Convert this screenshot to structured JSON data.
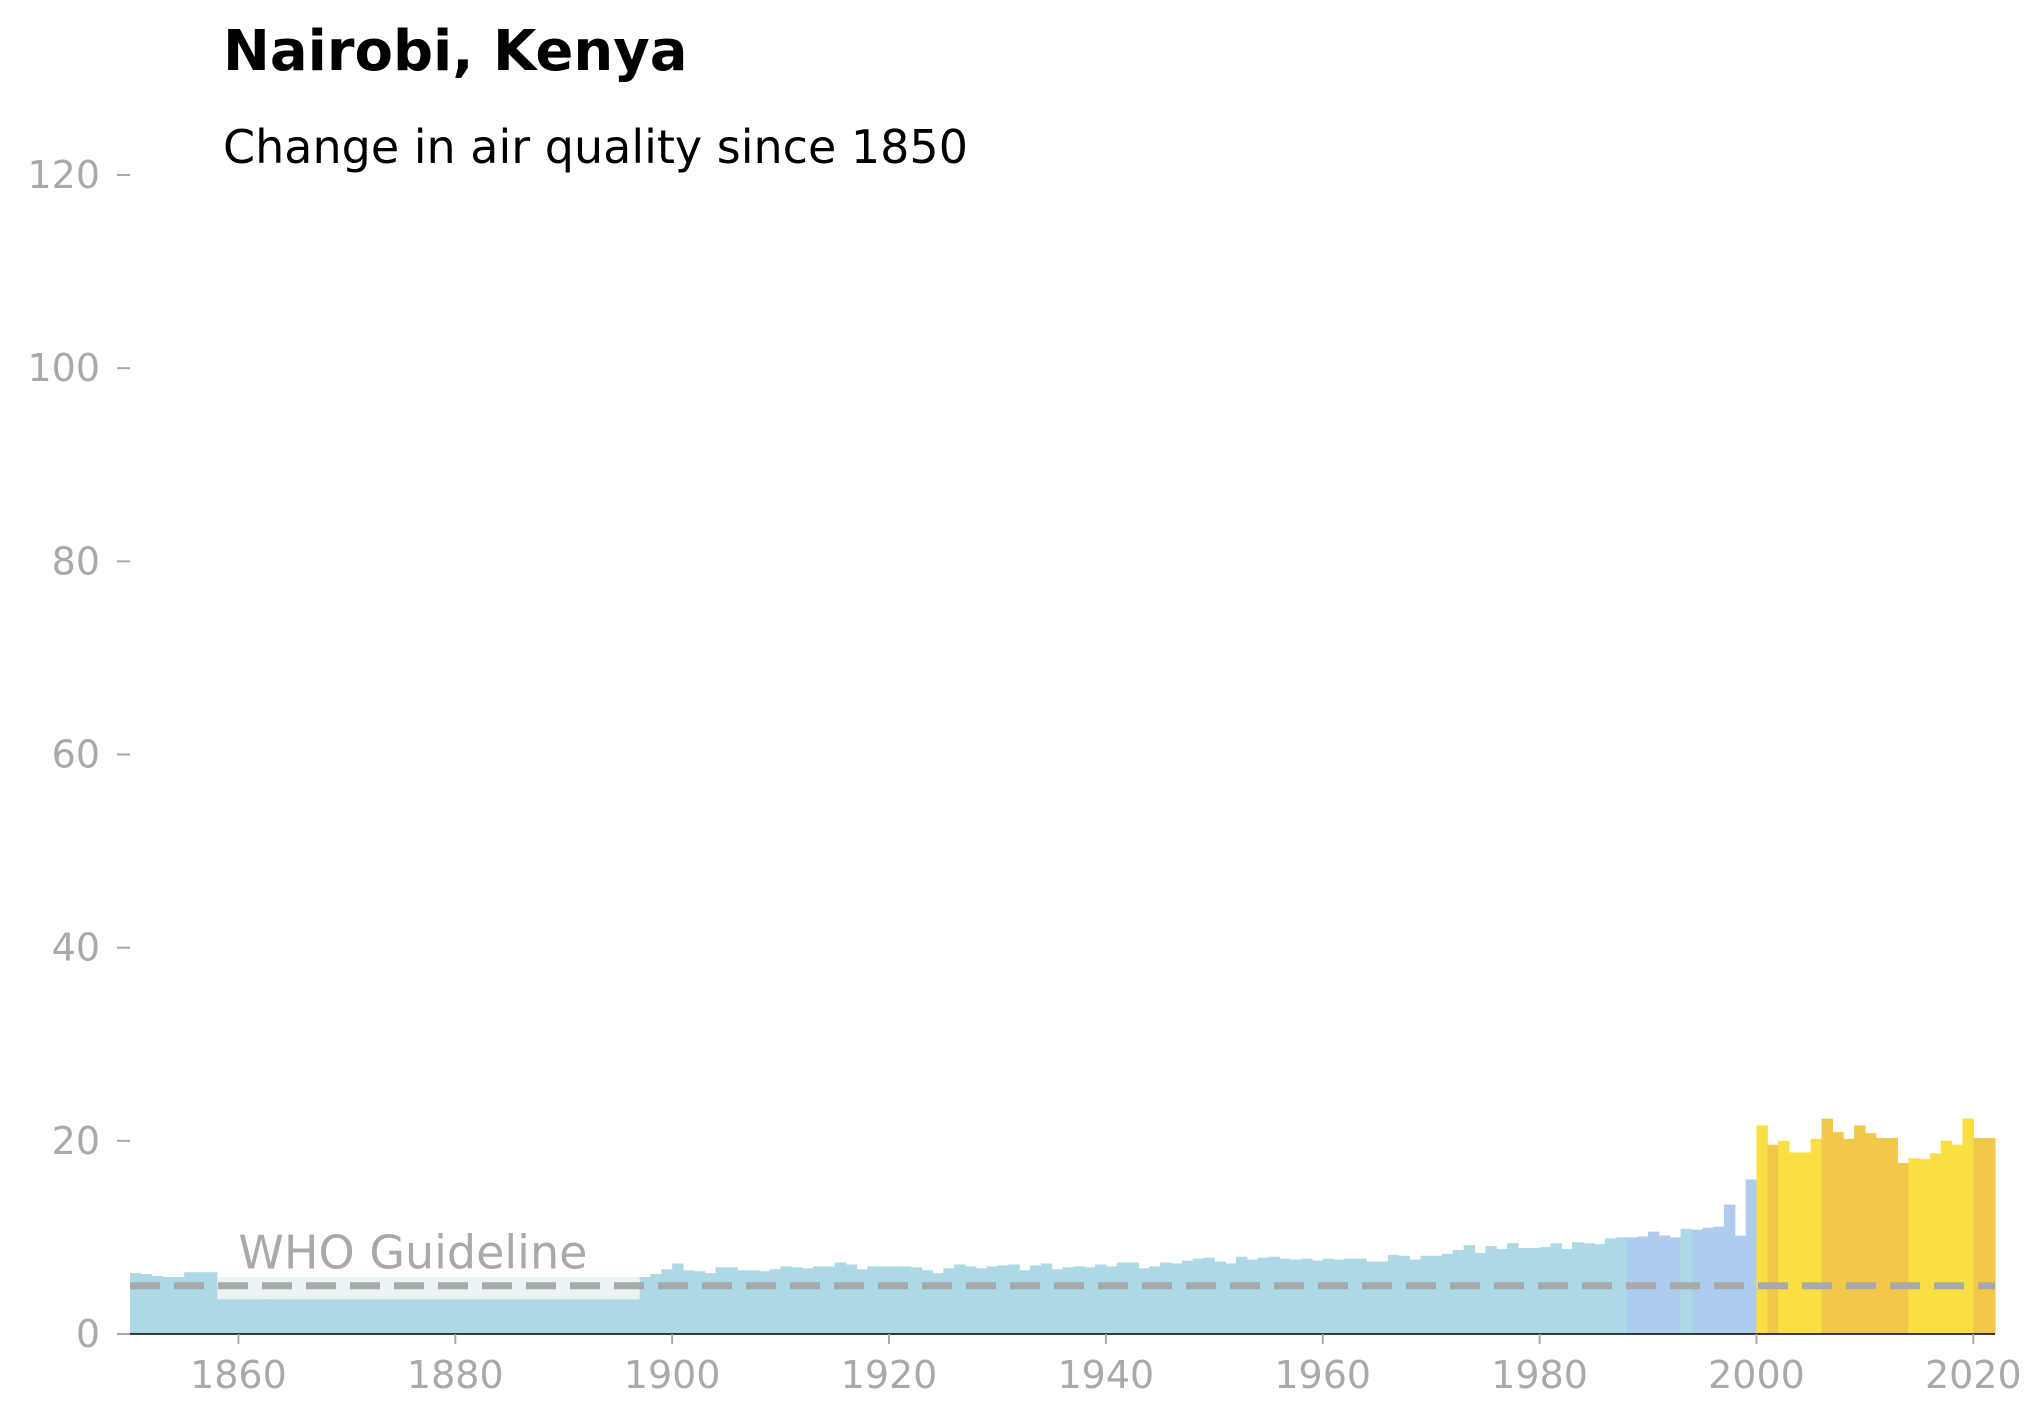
{
  "chart_data": {
    "type": "bar",
    "title": "Nairobi, Kenya",
    "subtitle": "Change in air quality since 1850",
    "xlabel": "",
    "ylabel": "",
    "xlim": [
      1850,
      2022
    ],
    "ylim": [
      0,
      120
    ],
    "x_ticks": [
      1860,
      1880,
      1900,
      1920,
      1940,
      1960,
      1980,
      2000,
      2020
    ],
    "y_ticks": [
      0,
      20,
      40,
      60,
      80,
      100,
      120
    ],
    "grid": false,
    "legend": "none",
    "guideline": {
      "label": "WHO Guideline",
      "value": 5,
      "color": "#a9a9a9"
    },
    "colors": {
      "low": "#add8e6",
      "moderate": "#aecdee",
      "high": "#f9df44",
      "higher": "#f2c84b",
      "gap": "#ebf3f7",
      "guideline": "#a9a9a9"
    },
    "years": [
      1850,
      1851,
      1852,
      1853,
      1854,
      1855,
      1856,
      1857,
      1858,
      1859,
      1860,
      1861,
      1862,
      1863,
      1864,
      1865,
      1866,
      1867,
      1868,
      1869,
      1870,
      1871,
      1872,
      1873,
      1874,
      1875,
      1876,
      1877,
      1878,
      1879,
      1880,
      1881,
      1882,
      1883,
      1884,
      1885,
      1886,
      1887,
      1888,
      1889,
      1890,
      1891,
      1892,
      1893,
      1894,
      1895,
      1896,
      1897,
      1898,
      1899,
      1900,
      1901,
      1902,
      1903,
      1904,
      1905,
      1906,
      1907,
      1908,
      1909,
      1910,
      1911,
      1912,
      1913,
      1914,
      1915,
      1916,
      1917,
      1918,
      1919,
      1920,
      1921,
      1922,
      1923,
      1924,
      1925,
      1926,
      1927,
      1928,
      1929,
      1930,
      1931,
      1932,
      1933,
      1934,
      1935,
      1936,
      1937,
      1938,
      1939,
      1940,
      1941,
      1942,
      1943,
      1944,
      1945,
      1946,
      1947,
      1948,
      1949,
      1950,
      1951,
      1952,
      1953,
      1954,
      1955,
      1956,
      1957,
      1958,
      1959,
      1960,
      1961,
      1962,
      1963,
      1964,
      1965,
      1966,
      1967,
      1968,
      1969,
      1970,
      1971,
      1972,
      1973,
      1974,
      1975,
      1976,
      1977,
      1978,
      1979,
      1980,
      1981,
      1982,
      1983,
      1984,
      1985,
      1986,
      1987,
      1988,
      1989,
      1990,
      1991,
      1992,
      1993,
      1994,
      1995,
      1996,
      1997,
      1998,
      1999,
      2000,
      2001,
      2002,
      2003,
      2004,
      2005,
      2006,
      2007,
      2008,
      2009,
      2010,
      2011,
      2012,
      2013,
      2014,
      2015,
      2016,
      2017,
      2018,
      2019,
      2020,
      2021
    ],
    "values": [
      6.3,
      6.2,
      6.0,
      5.9,
      5.9,
      6.4,
      6.4,
      6.4,
      6.1,
      5.9,
      5.9,
      5.9,
      5.9,
      5.9,
      5.9,
      5.9,
      5.9,
      5.9,
      5.9,
      5.9,
      5.9,
      5.9,
      5.9,
      5.9,
      5.9,
      5.9,
      5.9,
      5.9,
      5.9,
      5.9,
      5.9,
      5.9,
      5.9,
      5.9,
      5.9,
      5.9,
      5.9,
      5.9,
      5.9,
      5.9,
      5.9,
      5.9,
      5.9,
      5.9,
      5.9,
      5.9,
      5.9,
      5.9,
      6.2,
      6.7,
      7.3,
      6.6,
      6.5,
      6.3,
      6.9,
      6.9,
      6.6,
      6.6,
      6.5,
      6.7,
      7.0,
      6.9,
      6.8,
      7.0,
      7.0,
      7.4,
      7.2,
      6.7,
      7.0,
      7.0,
      7.0,
      7.0,
      6.9,
      6.6,
      6.3,
      6.8,
      7.2,
      7.0,
      6.8,
      7.0,
      7.1,
      7.2,
      6.6,
      7.1,
      7.3,
      6.7,
      6.9,
      7.0,
      6.9,
      7.2,
      7.0,
      7.4,
      7.4,
      6.8,
      7.0,
      7.4,
      7.3,
      7.6,
      7.8,
      7.9,
      7.5,
      7.3,
      8.0,
      7.7,
      7.9,
      8.0,
      7.8,
      7.7,
      7.8,
      7.6,
      7.8,
      7.7,
      7.8,
      7.8,
      7.5,
      7.5,
      8.2,
      8.1,
      7.7,
      8.1,
      8.1,
      8.3,
      8.7,
      9.2,
      8.4,
      9.1,
      8.8,
      9.4,
      8.9,
      8.9,
      9.0,
      9.4,
      8.8,
      9.5,
      9.4,
      9.3,
      9.9,
      10.0,
      10.0,
      10.1,
      10.6,
      10.2,
      10.0,
      10.9,
      10.8,
      11.0,
      11.1,
      13.4,
      10.2,
      16.0,
      21.6,
      19.6,
      20.0,
      18.8,
      18.8,
      20.2,
      22.3,
      20.9,
      20.2,
      21.6,
      20.8,
      20.3,
      20.3,
      17.7,
      18.2,
      18.1,
      18.7,
      20.0,
      19.6,
      22.3,
      20.3,
      20.3
    ],
    "levels": [
      "low",
      "low",
      "low",
      "low",
      "low",
      "low",
      "low",
      "low",
      "low",
      "low",
      "low",
      "low",
      "low",
      "low",
      "low",
      "low",
      "low",
      "low",
      "low",
      "low",
      "low",
      "low",
      "low",
      "low",
      "low",
      "low",
      "low",
      "low",
      "low",
      "low",
      "low",
      "low",
      "low",
      "low",
      "low",
      "low",
      "low",
      "low",
      "low",
      "low",
      "low",
      "low",
      "low",
      "low",
      "low",
      "low",
      "low",
      "low",
      "low",
      "low",
      "low",
      "low",
      "low",
      "low",
      "low",
      "low",
      "low",
      "low",
      "low",
      "low",
      "low",
      "low",
      "low",
      "low",
      "low",
      "low",
      "low",
      "low",
      "low",
      "low",
      "low",
      "low",
      "low",
      "low",
      "low",
      "low",
      "low",
      "low",
      "low",
      "low",
      "low",
      "low",
      "low",
      "low",
      "low",
      "low",
      "low",
      "low",
      "low",
      "low",
      "low",
      "low",
      "low",
      "low",
      "low",
      "low",
      "low",
      "low",
      "low",
      "low",
      "low",
      "low",
      "low",
      "low",
      "low",
      "low",
      "low",
      "low",
      "low",
      "low",
      "low",
      "low",
      "low",
      "low",
      "low",
      "low",
      "low",
      "low",
      "low",
      "low",
      "low",
      "low",
      "low",
      "low",
      "low",
      "low",
      "low",
      "low",
      "low",
      "low",
      "low",
      "low",
      "low",
      "low",
      "low",
      "low",
      "low",
      "low",
      "moderate",
      "moderate",
      "moderate",
      "moderate",
      "moderate",
      "low",
      "moderate",
      "moderate",
      "moderate",
      "moderate",
      "moderate",
      "moderate",
      "high",
      "higher",
      "high",
      "high",
      "high",
      "high",
      "higher",
      "higher",
      "higher",
      "higher",
      "higher",
      "higher",
      "higher",
      "higher",
      "high",
      "high",
      "high",
      "high",
      "high",
      "high",
      "higher",
      "higher",
      "higher"
    ],
    "gap_years": [
      1858,
      1896
    ]
  }
}
